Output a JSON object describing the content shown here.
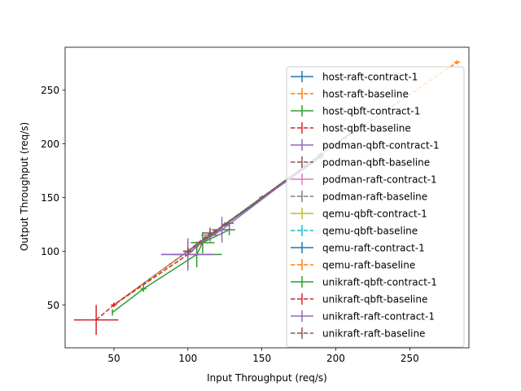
{
  "chart_data": {
    "type": "line",
    "title": "",
    "xlabel": "Input Throughput (req/s)",
    "ylabel": "Output Throughput (req/s)",
    "xlim": [
      17,
      290
    ],
    "ylim": [
      10,
      290
    ],
    "xticks": [
      50,
      100,
      150,
      200,
      250
    ],
    "yticks": [
      50,
      100,
      150,
      200,
      250
    ],
    "grid": false,
    "legend_position": "right",
    "series": [
      {
        "name": "host-raft-contract-1",
        "color": "#1f77b4",
        "dashed": false,
        "points": [
          [
            50,
            50,
            0,
            2
          ],
          [
            100,
            100,
            3,
            3
          ],
          [
            180,
            180,
            2,
            2
          ],
          [
            215,
            215,
            2,
            2
          ]
        ]
      },
      {
        "name": "host-raft-baseline",
        "color": "#ff7f0e",
        "dashed": true,
        "points": [
          [
            50,
            50,
            0,
            2
          ],
          [
            100,
            100,
            3,
            3
          ],
          [
            190,
            190,
            2,
            2
          ],
          [
            282,
            276,
            2,
            2
          ]
        ]
      },
      {
        "name": "host-qbft-contract-1",
        "color": "#2ca02c",
        "dashed": false,
        "points": [
          [
            49,
            43,
            0,
            3
          ],
          [
            70,
            65,
            2,
            3
          ],
          [
            106,
            97,
            17,
            12
          ],
          [
            110,
            108,
            8,
            10
          ],
          [
            128,
            120,
            4,
            5
          ]
        ]
      },
      {
        "name": "host-qbft-baseline",
        "color": "#d62728",
        "dashed": true,
        "points": [
          [
            38,
            36,
            15,
            14
          ],
          [
            50,
            50,
            2,
            2
          ],
          [
            100,
            97,
            18,
            12
          ],
          [
            125,
            125,
            2,
            2
          ]
        ]
      },
      {
        "name": "podman-qbft-contract-1",
        "color": "#9467bd",
        "dashed": false,
        "points": [
          [
            100,
            97,
            18,
            15
          ],
          [
            115,
            115,
            6,
            6
          ],
          [
            123,
            120,
            7,
            12
          ]
        ]
      },
      {
        "name": "podman-qbft-baseline",
        "color": "#8c564b",
        "dashed": true,
        "points": [
          [
            100,
            100,
            3,
            3
          ],
          [
            115,
            117,
            5,
            5
          ],
          [
            128,
            126,
            3,
            3
          ]
        ]
      },
      {
        "name": "podman-raft-contract-1",
        "color": "#e377c2",
        "dashed": false,
        "points": [
          [
            100,
            100,
            3,
            3
          ],
          [
            150,
            150,
            2,
            2
          ]
        ]
      },
      {
        "name": "podman-raft-baseline",
        "color": "#7f7f7f",
        "dashed": true,
        "points": [
          [
            100,
            100,
            3,
            3
          ],
          [
            150,
            150,
            2,
            2
          ]
        ]
      },
      {
        "name": "qemu-qbft-contract-1",
        "color": "#bcbd22",
        "dashed": false,
        "points": [
          [
            100,
            100,
            3,
            3
          ],
          [
            190,
            190,
            2,
            2
          ]
        ]
      },
      {
        "name": "qemu-qbft-baseline",
        "color": "#17becf",
        "dashed": true,
        "points": [
          [
            100,
            100,
            3,
            3
          ],
          [
            190,
            190,
            2,
            2
          ]
        ]
      },
      {
        "name": "qemu-raft-contract-1",
        "color": "#1f77b4",
        "dashed": false,
        "points": [
          [
            100,
            100,
            3,
            3
          ],
          [
            190,
            188,
            2,
            2
          ]
        ]
      },
      {
        "name": "qemu-raft-baseline",
        "color": "#ff7f0e",
        "dashed": true,
        "points": [
          [
            100,
            100,
            3,
            3
          ],
          [
            190,
            190,
            2,
            2
          ]
        ]
      },
      {
        "name": "unikraft-qbft-contract-1",
        "color": "#2ca02c",
        "dashed": false,
        "points": [
          [
            100,
            100,
            3,
            3
          ],
          [
            190,
            190,
            2,
            2
          ]
        ]
      },
      {
        "name": "unikraft-qbft-baseline",
        "color": "#d62728",
        "dashed": true,
        "points": [
          [
            100,
            100,
            3,
            3
          ],
          [
            190,
            190,
            2,
            2
          ]
        ]
      },
      {
        "name": "unikraft-raft-contract-1",
        "color": "#9467bd",
        "dashed": false,
        "points": [
          [
            100,
            100,
            3,
            3
          ],
          [
            123,
            120,
            5,
            5
          ],
          [
            190,
            190,
            2,
            2
          ]
        ]
      },
      {
        "name": "unikraft-raft-baseline",
        "color": "#8c564b",
        "dashed": true,
        "points": [
          [
            100,
            100,
            3,
            3
          ],
          [
            190,
            190,
            2,
            2
          ]
        ]
      }
    ]
  }
}
